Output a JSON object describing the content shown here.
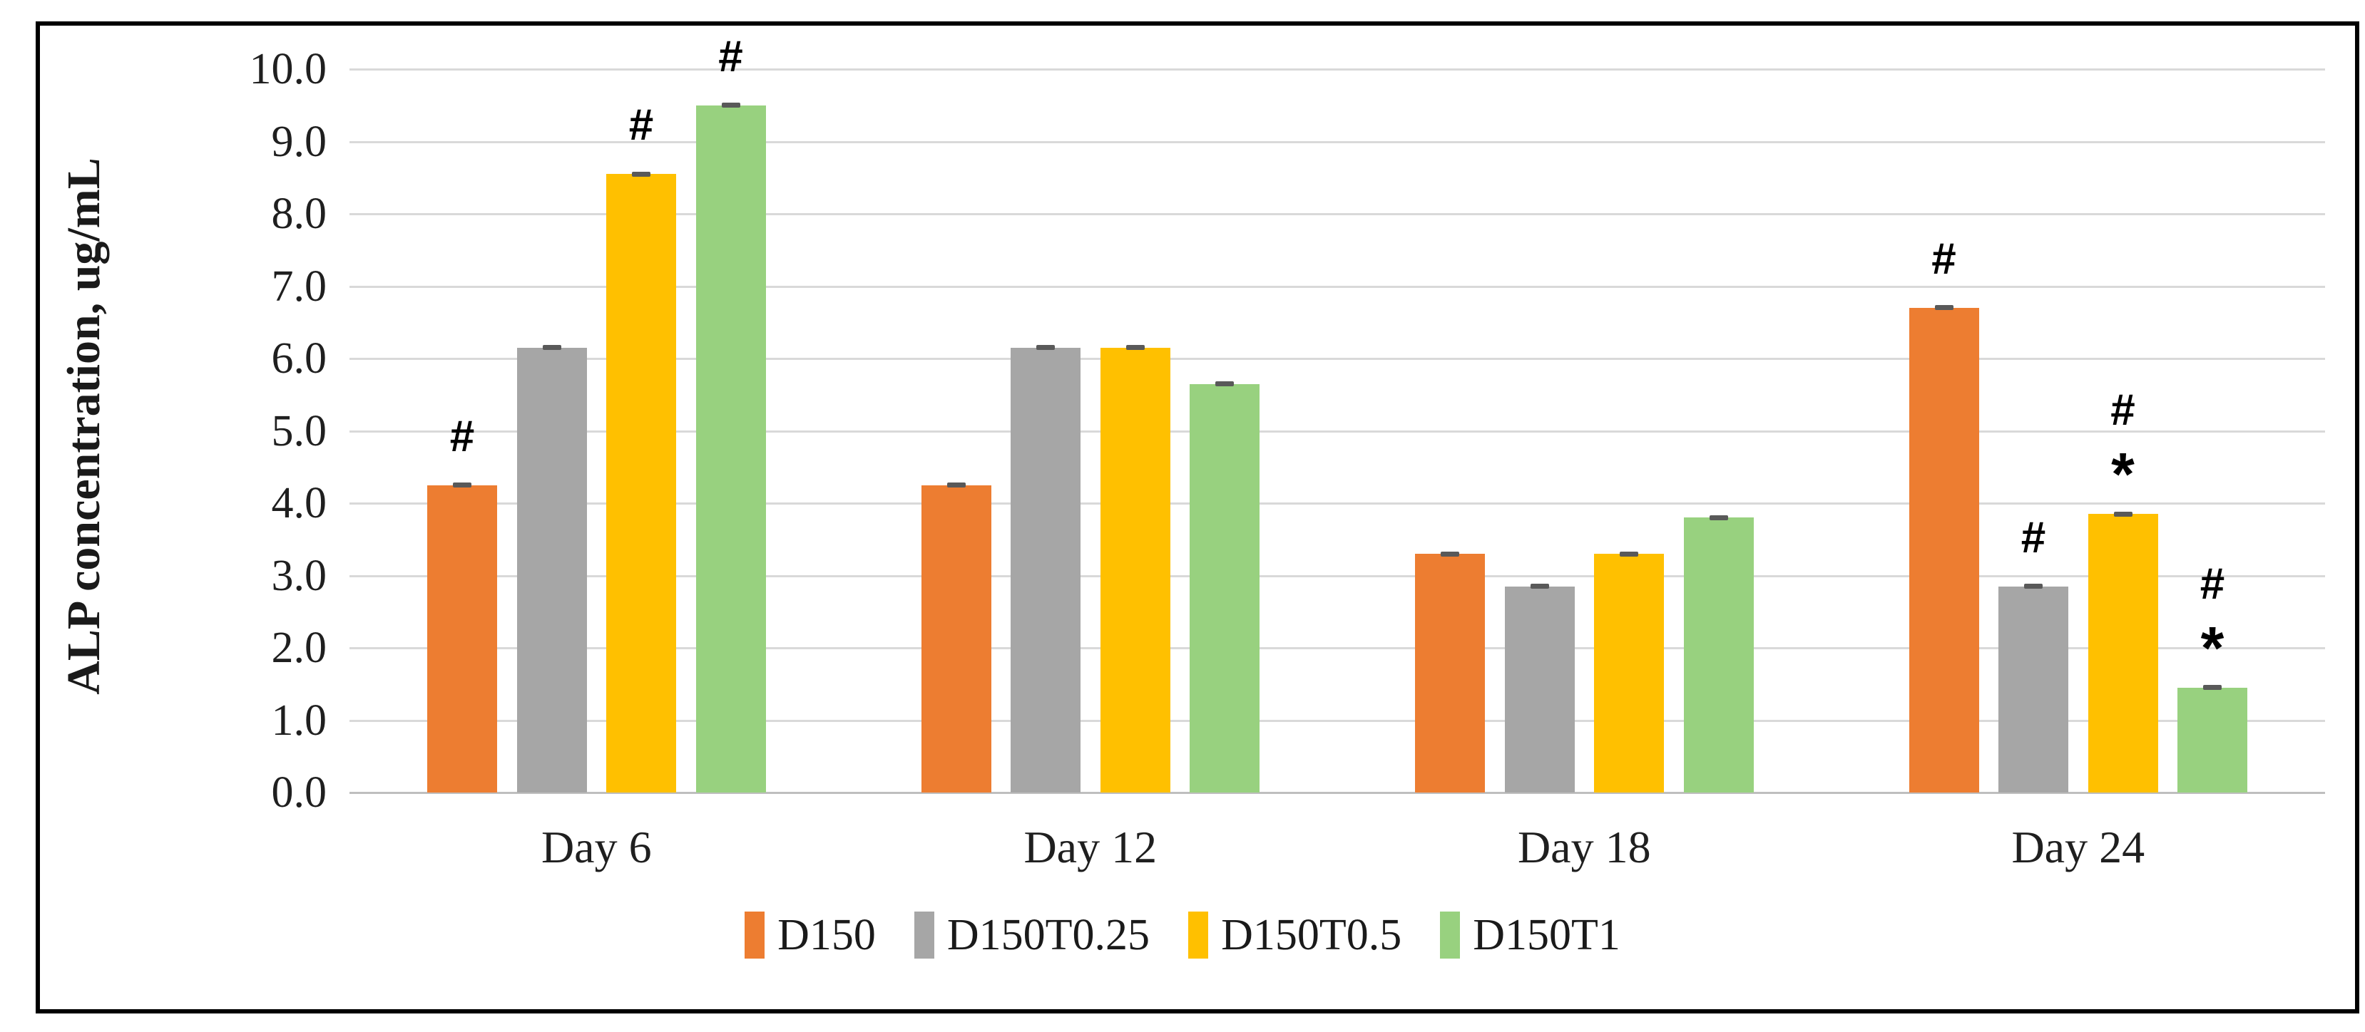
{
  "figure": {
    "background": "#ffffff",
    "border_color": "#000000"
  },
  "chart_data": {
    "type": "bar",
    "title": "",
    "ylabel": "ALP concentration, ug/mL",
    "xlabel": "",
    "ylim": [
      0,
      10
    ],
    "ytick_step": 1.0,
    "ytick_labels": [
      "0.0",
      "1.0",
      "2.0",
      "3.0",
      "4.0",
      "5.0",
      "6.0",
      "7.0",
      "8.0",
      "9.0",
      "10.0"
    ],
    "grid": true,
    "gridline_color": "#d9d9d9",
    "categories": [
      "Day 6",
      "Day 12",
      "Day 18",
      "Day 24"
    ],
    "series": [
      {
        "name": "D150",
        "color": "#ED7D31",
        "values": [
          4.25,
          4.25,
          3.3,
          6.7
        ]
      },
      {
        "name": "D150T0.25",
        "color": "#A6A6A6",
        "values": [
          6.15,
          6.15,
          2.85,
          2.85
        ]
      },
      {
        "name": "D150T0.5",
        "color": "#FFC000",
        "values": [
          8.55,
          6.15,
          3.3,
          3.85
        ]
      },
      {
        "name": "D150T1",
        "color": "#98D17F",
        "values": [
          9.5,
          5.65,
          3.8,
          1.45
        ]
      }
    ],
    "error_bar": 0.05,
    "error_bar_color": "#595959",
    "annotations": [
      {
        "category": "Day 6",
        "series": "D150",
        "symbols": [
          "#"
        ]
      },
      {
        "category": "Day 6",
        "series": "D150T0.5",
        "symbols": [
          "#"
        ]
      },
      {
        "category": "Day 6",
        "series": "D150T1",
        "symbols": [
          "#"
        ]
      },
      {
        "category": "Day 24",
        "series": "D150",
        "symbols": [
          "#"
        ]
      },
      {
        "category": "Day 24",
        "series": "D150T0.25",
        "symbols": [
          "#"
        ]
      },
      {
        "category": "Day 24",
        "series": "D150T0.5",
        "symbols": [
          "#",
          "*"
        ]
      },
      {
        "category": "Day 24",
        "series": "D150T1",
        "symbols": [
          "#",
          "*"
        ]
      }
    ],
    "legend_position": "bottom",
    "legend_labels": [
      "D150",
      "D150T0.25",
      "D150T0.5",
      "D150T1"
    ]
  }
}
